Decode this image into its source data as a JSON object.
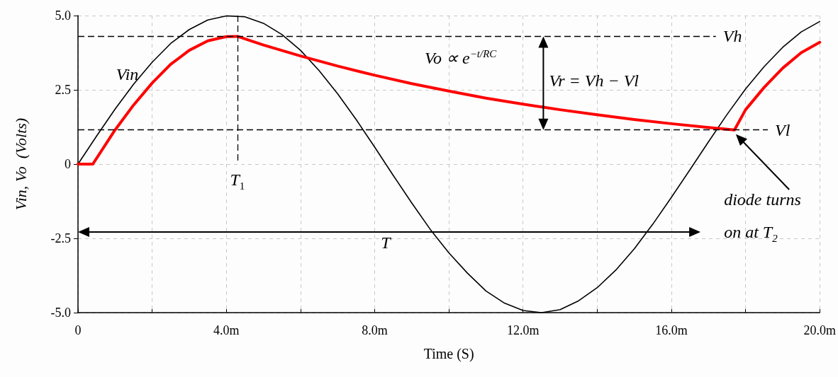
{
  "chart_data": {
    "type": "line",
    "xlabel": "Time (S)",
    "ylabel": "Vin, Vo  (Volts)",
    "series": [
      {
        "color": "#000000",
        "x": [
          0,
          0.5,
          1,
          1.5,
          2,
          2.5,
          3,
          3.5,
          4,
          4.5,
          5,
          5.5,
          6,
          6.5,
          7,
          7.5,
          8,
          8.5,
          9,
          9.5,
          10,
          10.5,
          11,
          11.5,
          12,
          12.5,
          13,
          13.5,
          14,
          14.5,
          15,
          15.5,
          16,
          16.5,
          17,
          17.5,
          18,
          18.5,
          19,
          19.5,
          20
        ],
        "values": [
          0,
          0.94,
          1.85,
          2.69,
          3.43,
          4.06,
          4.53,
          4.85,
          4.99,
          4.96,
          4.74,
          4.36,
          3.83,
          3.15,
          2.37,
          1.5,
          0.57,
          -0.38,
          -1.31,
          -2.2,
          -2.99,
          -3.67,
          -4.27,
          -4.68,
          -4.93,
          -5.0,
          -4.9,
          -4.6,
          -4.16,
          -3.57,
          -2.85,
          -2.02,
          -1.12,
          -0.19,
          0.75,
          1.67,
          2.53,
          3.28,
          3.93,
          4.45,
          4.8
        ]
      },
      {
        "color": "#ff0000",
        "x": [
          0,
          0.4,
          1,
          1.5,
          2,
          2.5,
          3,
          3.5,
          4,
          4.3,
          5,
          6,
          7,
          8,
          9,
          10,
          11,
          12,
          13,
          14,
          15,
          16,
          17,
          17.7,
          18,
          18.5,
          19,
          19.5,
          20
        ],
        "values": [
          0,
          0,
          1.15,
          1.99,
          2.73,
          3.36,
          3.83,
          4.15,
          4.29,
          4.3,
          4.01,
          3.64,
          3.3,
          2.99,
          2.71,
          2.46,
          2.22,
          2.02,
          1.83,
          1.66,
          1.5,
          1.36,
          1.23,
          1.15,
          1.83,
          2.58,
          3.23,
          3.75,
          4.1
        ]
      }
    ],
    "xlim": [
      0,
      20
    ],
    "ylim": [
      -5,
      5
    ],
    "xticks": [
      {
        "value": 0,
        "label": "0"
      },
      {
        "value": 2,
        "label": null
      },
      {
        "value": 4,
        "label": "4.0m"
      },
      {
        "value": 6,
        "label": null
      },
      {
        "value": 8,
        "label": "8.0m"
      },
      {
        "value": 10,
        "label": null
      },
      {
        "value": 12,
        "label": "12.0m"
      },
      {
        "value": 14,
        "label": null
      },
      {
        "value": 16,
        "label": "16.0m"
      },
      {
        "value": 18,
        "label": null
      },
      {
        "value": 20,
        "label": "20.0m"
      }
    ],
    "yticks": [
      {
        "value": -5,
        "label": "-5.0"
      },
      {
        "value": -2.5,
        "label": "-2.5"
      },
      0,
      {
        "value": 2.5,
        "label": "2.5"
      },
      {
        "value": 5,
        "label": "5.0"
      }
    ],
    "grid": true,
    "marker": "none",
    "line_style": "solid",
    "ref_lines": [
      {
        "axis": "y",
        "value": 4.3,
        "label": "Vh",
        "color": "#000000",
        "line_style": "dashed"
      },
      {
        "axis": "y",
        "value": 1.15,
        "label": "Vl",
        "color": "#000000",
        "line_style": "dashed"
      },
      {
        "axis": "x",
        "value": 4.3,
        "label": "T$_{1}$",
        "color": "#000000",
        "line_style": "dashed"
      }
    ],
    "annotations": [
      "Vin",
      "Vo ∝ e$^{−t/RC}$",
      "Vr = Vh − Vl",
      "T",
      "diode turns on at T$_{2}$"
    ]
  }
}
